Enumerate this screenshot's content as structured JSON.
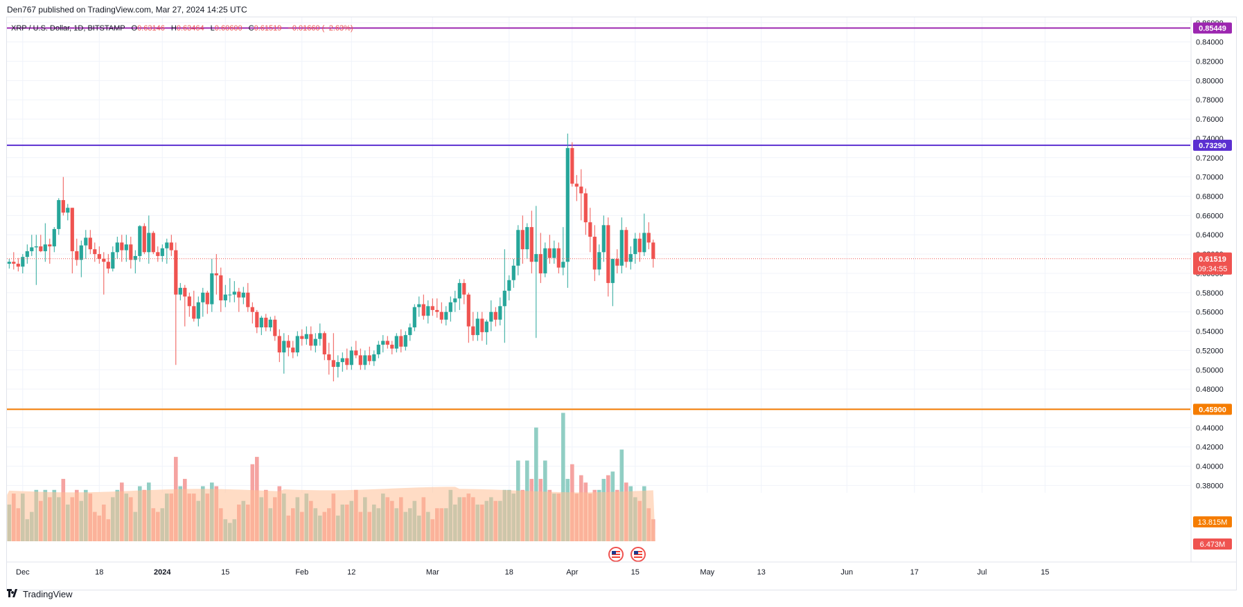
{
  "caption": "Den767 published on TradingView.com, Mar 27, 2024 14:25 UTC",
  "footer": {
    "brand": "TradingView",
    "logo_icon": "tradingview-logo-icon"
  },
  "legend": {
    "symbol": "XRP / U.S. Dollar, 1D, BITSTAMP",
    "o_label": "O",
    "o": "0.63146",
    "h_label": "H",
    "h": "0.63464",
    "l_label": "L",
    "l": "0.60600",
    "c_label": "C",
    "c": "0.61519",
    "change": "−0.01660 (−2.63%)"
  },
  "colors": {
    "up": "#26a69a",
    "down": "#ef5350",
    "vol_up": "#91cec4",
    "vol_down": "#f5a3a1",
    "vol_ma": "#ffbf95",
    "line_purple": "#9c27b0",
    "line_blue": "#5b2fd1",
    "line_orange": "#f57c00",
    "grid": "#f0f3fa",
    "axis_text": "#131722"
  },
  "chart_data": {
    "type": "candlestick",
    "title": "XRP / U.S. Dollar, 1D, BITSTAMP",
    "y_axis": {
      "ylim": [
        0.376,
        0.862
      ],
      "ticks": [
        "0.86000",
        "0.84000",
        "0.82000",
        "0.80000",
        "0.78000",
        "0.76000",
        "0.74000",
        "0.72000",
        "0.70000",
        "0.68000",
        "0.66000",
        "0.64000",
        "0.62000",
        "0.60000",
        "0.58000",
        "0.56000",
        "0.54000",
        "0.52000",
        "0.50000",
        "0.48000",
        "0.46000",
        "0.44000",
        "0.42000",
        "0.40000",
        "0.38000"
      ]
    },
    "x_axis": {
      "start_date": "2023-11-28",
      "ticks": [
        {
          "label": "Dec",
          "day": 3
        },
        {
          "label": "18",
          "day": 20
        },
        {
          "label": "2024",
          "day": 34
        },
        {
          "label": "15",
          "day": 48
        },
        {
          "label": "Feb",
          "day": 65
        },
        {
          "label": "12",
          "day": 76
        },
        {
          "label": "Mar",
          "day": 94
        },
        {
          "label": "18",
          "day": 111
        },
        {
          "label": "Apr",
          "day": 125
        },
        {
          "label": "15",
          "day": 139
        },
        {
          "label": "May",
          "day": 155
        },
        {
          "label": "13",
          "day": 167
        },
        {
          "label": "Jun",
          "day": 186
        },
        {
          "label": "17",
          "day": 201
        },
        {
          "label": "Jul",
          "day": 216
        },
        {
          "label": "15",
          "day": 230
        }
      ],
      "bold_ticks": [
        "2024"
      ]
    },
    "horizontal_lines": [
      {
        "value": 0.85449,
        "label": "0.85449",
        "color_key": "line_purple"
      },
      {
        "value": 0.7329,
        "label": "0.73290",
        "color_key": "line_blue"
      },
      {
        "value": 0.459,
        "label": "0.45900",
        "color_key": "line_orange"
      }
    ],
    "last_price": {
      "value": 0.61519,
      "label": "0.61519",
      "countdown": "09:34:55"
    },
    "volume_labels": [
      {
        "label": "13.815M",
        "value": 13.815,
        "color": "#f57c00"
      },
      {
        "label": "6.473M",
        "value": 6.473,
        "color": "#ef5350"
      }
    ],
    "volume_ma": 13.8,
    "ohlcv": [
      {
        "o": 0.61,
        "h": 0.615,
        "l": 0.605,
        "c": 0.612,
        "v": 10
      },
      {
        "o": 0.612,
        "h": 0.622,
        "l": 0.604,
        "c": 0.61,
        "v": 13
      },
      {
        "o": 0.61,
        "h": 0.616,
        "l": 0.602,
        "c": 0.607,
        "v": 9
      },
      {
        "o": 0.607,
        "h": 0.62,
        "l": 0.6,
        "c": 0.617,
        "v": 13
      },
      {
        "o": 0.617,
        "h": 0.63,
        "l": 0.61,
        "c": 0.623,
        "v": 6
      },
      {
        "o": 0.623,
        "h": 0.64,
        "l": 0.618,
        "c": 0.627,
        "v": 8
      },
      {
        "o": 0.627,
        "h": 0.64,
        "l": 0.588,
        "c": 0.628,
        "v": 14
      },
      {
        "o": 0.628,
        "h": 0.64,
        "l": 0.622,
        "c": 0.623,
        "v": 11
      },
      {
        "o": 0.623,
        "h": 0.652,
        "l": 0.612,
        "c": 0.63,
        "v": 14
      },
      {
        "o": 0.63,
        "h": 0.636,
        "l": 0.61,
        "c": 0.628,
        "v": 12
      },
      {
        "o": 0.628,
        "h": 0.648,
        "l": 0.622,
        "c": 0.646,
        "v": 14
      },
      {
        "o": 0.646,
        "h": 0.678,
        "l": 0.64,
        "c": 0.676,
        "v": 12
      },
      {
        "o": 0.676,
        "h": 0.7,
        "l": 0.66,
        "c": 0.663,
        "v": 17
      },
      {
        "o": 0.663,
        "h": 0.672,
        "l": 0.655,
        "c": 0.668,
        "v": 10
      },
      {
        "o": 0.668,
        "h": 0.668,
        "l": 0.6,
        "c": 0.623,
        "v": 12
      },
      {
        "o": 0.623,
        "h": 0.636,
        "l": 0.608,
        "c": 0.614,
        "v": 14
      },
      {
        "o": 0.614,
        "h": 0.634,
        "l": 0.596,
        "c": 0.629,
        "v": 11
      },
      {
        "o": 0.629,
        "h": 0.645,
        "l": 0.615,
        "c": 0.637,
        "v": 14
      },
      {
        "o": 0.637,
        "h": 0.645,
        "l": 0.62,
        "c": 0.625,
        "v": 13
      },
      {
        "o": 0.625,
        "h": 0.632,
        "l": 0.612,
        "c": 0.62,
        "v": 8
      },
      {
        "o": 0.62,
        "h": 0.628,
        "l": 0.61,
        "c": 0.615,
        "v": 7
      },
      {
        "o": 0.615,
        "h": 0.622,
        "l": 0.578,
        "c": 0.612,
        "v": 10
      },
      {
        "o": 0.612,
        "h": 0.62,
        "l": 0.6,
        "c": 0.605,
        "v": 6
      },
      {
        "o": 0.605,
        "h": 0.628,
        "l": 0.602,
        "c": 0.622,
        "v": 12
      },
      {
        "o": 0.622,
        "h": 0.638,
        "l": 0.615,
        "c": 0.632,
        "v": 14
      },
      {
        "o": 0.632,
        "h": 0.64,
        "l": 0.612,
        "c": 0.624,
        "v": 16
      },
      {
        "o": 0.624,
        "h": 0.64,
        "l": 0.612,
        "c": 0.63,
        "v": 13
      },
      {
        "o": 0.63,
        "h": 0.638,
        "l": 0.605,
        "c": 0.614,
        "v": 12
      },
      {
        "o": 0.614,
        "h": 0.624,
        "l": 0.6,
        "c": 0.618,
        "v": 8
      },
      {
        "o": 0.618,
        "h": 0.65,
        "l": 0.612,
        "c": 0.649,
        "v": 15
      },
      {
        "o": 0.649,
        "h": 0.652,
        "l": 0.62,
        "c": 0.622,
        "v": 14
      },
      {
        "o": 0.622,
        "h": 0.66,
        "l": 0.61,
        "c": 0.642,
        "v": 16
      },
      {
        "o": 0.642,
        "h": 0.644,
        "l": 0.62,
        "c": 0.622,
        "v": 9
      },
      {
        "o": 0.622,
        "h": 0.628,
        "l": 0.612,
        "c": 0.618,
        "v": 8
      },
      {
        "o": 0.618,
        "h": 0.63,
        "l": 0.612,
        "c": 0.626,
        "v": 9
      },
      {
        "o": 0.626,
        "h": 0.636,
        "l": 0.61,
        "c": 0.632,
        "v": 13
      },
      {
        "o": 0.632,
        "h": 0.64,
        "l": 0.618,
        "c": 0.624,
        "v": 13
      },
      {
        "o": 0.624,
        "h": 0.632,
        "l": 0.505,
        "c": 0.578,
        "v": 23
      },
      {
        "o": 0.578,
        "h": 0.59,
        "l": 0.572,
        "c": 0.585,
        "v": 15
      },
      {
        "o": 0.585,
        "h": 0.588,
        "l": 0.545,
        "c": 0.576,
        "v": 17
      },
      {
        "o": 0.576,
        "h": 0.58,
        "l": 0.555,
        "c": 0.566,
        "v": 13
      },
      {
        "o": 0.566,
        "h": 0.582,
        "l": 0.55,
        "c": 0.553,
        "v": 13
      },
      {
        "o": 0.553,
        "h": 0.576,
        "l": 0.545,
        "c": 0.57,
        "v": 11
      },
      {
        "o": 0.57,
        "h": 0.585,
        "l": 0.555,
        "c": 0.58,
        "v": 15
      },
      {
        "o": 0.58,
        "h": 0.582,
        "l": 0.558,
        "c": 0.568,
        "v": 13
      },
      {
        "o": 0.568,
        "h": 0.615,
        "l": 0.56,
        "c": 0.6,
        "v": 16
      },
      {
        "o": 0.6,
        "h": 0.62,
        "l": 0.578,
        "c": 0.598,
        "v": 15
      },
      {
        "o": 0.598,
        "h": 0.606,
        "l": 0.56,
        "c": 0.572,
        "v": 9
      },
      {
        "o": 0.572,
        "h": 0.588,
        "l": 0.565,
        "c": 0.578,
        "v": 6
      },
      {
        "o": 0.578,
        "h": 0.595,
        "l": 0.57,
        "c": 0.578,
        "v": 5
      },
      {
        "o": 0.578,
        "h": 0.592,
        "l": 0.57,
        "c": 0.581,
        "v": 6
      },
      {
        "o": 0.581,
        "h": 0.585,
        "l": 0.56,
        "c": 0.575,
        "v": 10
      },
      {
        "o": 0.575,
        "h": 0.586,
        "l": 0.568,
        "c": 0.58,
        "v": 11
      },
      {
        "o": 0.58,
        "h": 0.59,
        "l": 0.56,
        "c": 0.565,
        "v": 10
      },
      {
        "o": 0.565,
        "h": 0.57,
        "l": 0.548,
        "c": 0.56,
        "v": 21
      },
      {
        "o": 0.56,
        "h": 0.562,
        "l": 0.538,
        "c": 0.544,
        "v": 23
      },
      {
        "o": 0.544,
        "h": 0.556,
        "l": 0.536,
        "c": 0.554,
        "v": 12
      },
      {
        "o": 0.554,
        "h": 0.558,
        "l": 0.54,
        "c": 0.544,
        "v": 14
      },
      {
        "o": 0.544,
        "h": 0.555,
        "l": 0.54,
        "c": 0.552,
        "v": 9
      },
      {
        "o": 0.552,
        "h": 0.556,
        "l": 0.53,
        "c": 0.535,
        "v": 12
      },
      {
        "o": 0.535,
        "h": 0.542,
        "l": 0.508,
        "c": 0.518,
        "v": 15
      },
      {
        "o": 0.518,
        "h": 0.538,
        "l": 0.496,
        "c": 0.53,
        "v": 13
      },
      {
        "o": 0.53,
        "h": 0.536,
        "l": 0.514,
        "c": 0.523,
        "v": 7
      },
      {
        "o": 0.523,
        "h": 0.53,
        "l": 0.512,
        "c": 0.518,
        "v": 9
      },
      {
        "o": 0.518,
        "h": 0.54,
        "l": 0.514,
        "c": 0.535,
        "v": 12
      },
      {
        "o": 0.535,
        "h": 0.542,
        "l": 0.525,
        "c": 0.532,
        "v": 8
      },
      {
        "o": 0.532,
        "h": 0.545,
        "l": 0.526,
        "c": 0.537,
        "v": 13
      },
      {
        "o": 0.537,
        "h": 0.545,
        "l": 0.52,
        "c": 0.525,
        "v": 11
      },
      {
        "o": 0.525,
        "h": 0.538,
        "l": 0.518,
        "c": 0.532,
        "v": 9
      },
      {
        "o": 0.532,
        "h": 0.548,
        "l": 0.525,
        "c": 0.538,
        "v": 7
      },
      {
        "o": 0.538,
        "h": 0.54,
        "l": 0.51,
        "c": 0.516,
        "v": 8
      },
      {
        "o": 0.516,
        "h": 0.528,
        "l": 0.495,
        "c": 0.51,
        "v": 9
      },
      {
        "o": 0.51,
        "h": 0.538,
        "l": 0.488,
        "c": 0.503,
        "v": 13
      },
      {
        "o": 0.503,
        "h": 0.515,
        "l": 0.492,
        "c": 0.508,
        "v": 7
      },
      {
        "o": 0.508,
        "h": 0.518,
        "l": 0.498,
        "c": 0.512,
        "v": 10
      },
      {
        "o": 0.512,
        "h": 0.522,
        "l": 0.5,
        "c": 0.505,
        "v": 10
      },
      {
        "o": 0.505,
        "h": 0.524,
        "l": 0.5,
        "c": 0.52,
        "v": 11
      },
      {
        "o": 0.52,
        "h": 0.53,
        "l": 0.512,
        "c": 0.515,
        "v": 14
      },
      {
        "o": 0.515,
        "h": 0.522,
        "l": 0.5,
        "c": 0.505,
        "v": 8
      },
      {
        "o": 0.505,
        "h": 0.52,
        "l": 0.5,
        "c": 0.515,
        "v": 12
      },
      {
        "o": 0.515,
        "h": 0.524,
        "l": 0.505,
        "c": 0.509,
        "v": 8
      },
      {
        "o": 0.509,
        "h": 0.52,
        "l": 0.504,
        "c": 0.516,
        "v": 10
      },
      {
        "o": 0.516,
        "h": 0.53,
        "l": 0.512,
        "c": 0.526,
        "v": 9
      },
      {
        "o": 0.526,
        "h": 0.536,
        "l": 0.518,
        "c": 0.53,
        "v": 13
      },
      {
        "o": 0.53,
        "h": 0.535,
        "l": 0.522,
        "c": 0.526,
        "v": 12
      },
      {
        "o": 0.526,
        "h": 0.53,
        "l": 0.516,
        "c": 0.522,
        "v": 11
      },
      {
        "o": 0.522,
        "h": 0.538,
        "l": 0.518,
        "c": 0.535,
        "v": 9
      },
      {
        "o": 0.535,
        "h": 0.542,
        "l": 0.518,
        "c": 0.524,
        "v": 12
      },
      {
        "o": 0.524,
        "h": 0.54,
        "l": 0.52,
        "c": 0.536,
        "v": 8
      },
      {
        "o": 0.536,
        "h": 0.548,
        "l": 0.53,
        "c": 0.544,
        "v": 9
      },
      {
        "o": 0.544,
        "h": 0.568,
        "l": 0.54,
        "c": 0.565,
        "v": 11
      },
      {
        "o": 0.565,
        "h": 0.576,
        "l": 0.555,
        "c": 0.568,
        "v": 7
      },
      {
        "o": 0.568,
        "h": 0.578,
        "l": 0.552,
        "c": 0.556,
        "v": 12
      },
      {
        "o": 0.556,
        "h": 0.572,
        "l": 0.548,
        "c": 0.566,
        "v": 8
      },
      {
        "o": 0.566,
        "h": 0.574,
        "l": 0.556,
        "c": 0.562,
        "v": 6
      },
      {
        "o": 0.562,
        "h": 0.574,
        "l": 0.554,
        "c": 0.56,
        "v": 9
      },
      {
        "o": 0.56,
        "h": 0.57,
        "l": 0.548,
        "c": 0.552,
        "v": 9
      },
      {
        "o": 0.552,
        "h": 0.566,
        "l": 0.546,
        "c": 0.56,
        "v": 9
      },
      {
        "o": 0.56,
        "h": 0.576,
        "l": 0.55,
        "c": 0.57,
        "v": 14
      },
      {
        "o": 0.57,
        "h": 0.582,
        "l": 0.56,
        "c": 0.574,
        "v": 10
      },
      {
        "o": 0.574,
        "h": 0.594,
        "l": 0.562,
        "c": 0.59,
        "v": 12
      },
      {
        "o": 0.59,
        "h": 0.594,
        "l": 0.568,
        "c": 0.578,
        "v": 12
      },
      {
        "o": 0.578,
        "h": 0.58,
        "l": 0.528,
        "c": 0.545,
        "v": 13
      },
      {
        "o": 0.545,
        "h": 0.56,
        "l": 0.53,
        "c": 0.536,
        "v": 12
      },
      {
        "o": 0.536,
        "h": 0.56,
        "l": 0.53,
        "c": 0.553,
        "v": 10
      },
      {
        "o": 0.553,
        "h": 0.56,
        "l": 0.53,
        "c": 0.539,
        "v": 10
      },
      {
        "o": 0.539,
        "h": 0.552,
        "l": 0.526,
        "c": 0.55,
        "v": 11
      },
      {
        "o": 0.55,
        "h": 0.572,
        "l": 0.54,
        "c": 0.56,
        "v": 12
      },
      {
        "o": 0.56,
        "h": 0.565,
        "l": 0.545,
        "c": 0.552,
        "v": 11
      },
      {
        "o": 0.552,
        "h": 0.575,
        "l": 0.546,
        "c": 0.566,
        "v": 11
      },
      {
        "o": 0.566,
        "h": 0.625,
        "l": 0.528,
        "c": 0.582,
        "v": 14
      },
      {
        "o": 0.582,
        "h": 0.598,
        "l": 0.572,
        "c": 0.593,
        "v": 14
      },
      {
        "o": 0.593,
        "h": 0.615,
        "l": 0.585,
        "c": 0.608,
        "v": 13
      },
      {
        "o": 0.608,
        "h": 0.65,
        "l": 0.598,
        "c": 0.645,
        "v": 22
      },
      {
        "o": 0.645,
        "h": 0.66,
        "l": 0.61,
        "c": 0.625,
        "v": 14
      },
      {
        "o": 0.625,
        "h": 0.652,
        "l": 0.615,
        "c": 0.648,
        "v": 22
      },
      {
        "o": 0.648,
        "h": 0.665,
        "l": 0.6,
        "c": 0.612,
        "v": 17
      },
      {
        "o": 0.612,
        "h": 0.67,
        "l": 0.533,
        "c": 0.62,
        "v": 31
      },
      {
        "o": 0.62,
        "h": 0.642,
        "l": 0.59,
        "c": 0.6,
        "v": 17
      },
      {
        "o": 0.6,
        "h": 0.632,
        "l": 0.596,
        "c": 0.626,
        "v": 22
      },
      {
        "o": 0.626,
        "h": 0.64,
        "l": 0.61,
        "c": 0.616,
        "v": 14
      },
      {
        "o": 0.616,
        "h": 0.634,
        "l": 0.61,
        "c": 0.626,
        "v": 13
      },
      {
        "o": 0.626,
        "h": 0.632,
        "l": 0.6,
        "c": 0.606,
        "v": 13
      },
      {
        "o": 0.606,
        "h": 0.648,
        "l": 0.598,
        "c": 0.612,
        "v": 35
      },
      {
        "o": 0.612,
        "h": 0.745,
        "l": 0.585,
        "c": 0.73,
        "v": 17
      },
      {
        "o": 0.73,
        "h": 0.736,
        "l": 0.69,
        "c": 0.693,
        "v": 21
      },
      {
        "o": 0.693,
        "h": 0.702,
        "l": 0.675,
        "c": 0.69,
        "v": 13
      },
      {
        "o": 0.69,
        "h": 0.708,
        "l": 0.655,
        "c": 0.683,
        "v": 18
      },
      {
        "o": 0.683,
        "h": 0.688,
        "l": 0.64,
        "c": 0.653,
        "v": 16
      },
      {
        "o": 0.653,
        "h": 0.668,
        "l": 0.622,
        "c": 0.638,
        "v": 13
      },
      {
        "o": 0.638,
        "h": 0.65,
        "l": 0.592,
        "c": 0.604,
        "v": 14
      },
      {
        "o": 0.604,
        "h": 0.63,
        "l": 0.598,
        "c": 0.622,
        "v": 14
      },
      {
        "o": 0.622,
        "h": 0.66,
        "l": 0.612,
        "c": 0.65,
        "v": 17
      },
      {
        "o": 0.65,
        "h": 0.658,
        "l": 0.576,
        "c": 0.59,
        "v": 18
      },
      {
        "o": 0.59,
        "h": 0.615,
        "l": 0.566,
        "c": 0.615,
        "v": 19
      },
      {
        "o": 0.615,
        "h": 0.625,
        "l": 0.6,
        "c": 0.608,
        "v": 14
      },
      {
        "o": 0.608,
        "h": 0.658,
        "l": 0.6,
        "c": 0.645,
        "v": 25
      },
      {
        "o": 0.645,
        "h": 0.648,
        "l": 0.606,
        "c": 0.612,
        "v": 16
      },
      {
        "o": 0.612,
        "h": 0.628,
        "l": 0.604,
        "c": 0.62,
        "v": 15
      },
      {
        "o": 0.62,
        "h": 0.642,
        "l": 0.61,
        "c": 0.636,
        "v": 12
      },
      {
        "o": 0.636,
        "h": 0.642,
        "l": 0.612,
        "c": 0.622,
        "v": 11
      },
      {
        "o": 0.622,
        "h": 0.662,
        "l": 0.618,
        "c": 0.642,
        "v": 15
      },
      {
        "o": 0.642,
        "h": 0.653,
        "l": 0.625,
        "c": 0.632,
        "v": 9
      },
      {
        "o": 0.632,
        "h": 0.635,
        "l": 0.606,
        "c": 0.615,
        "v": 6
      }
    ]
  }
}
